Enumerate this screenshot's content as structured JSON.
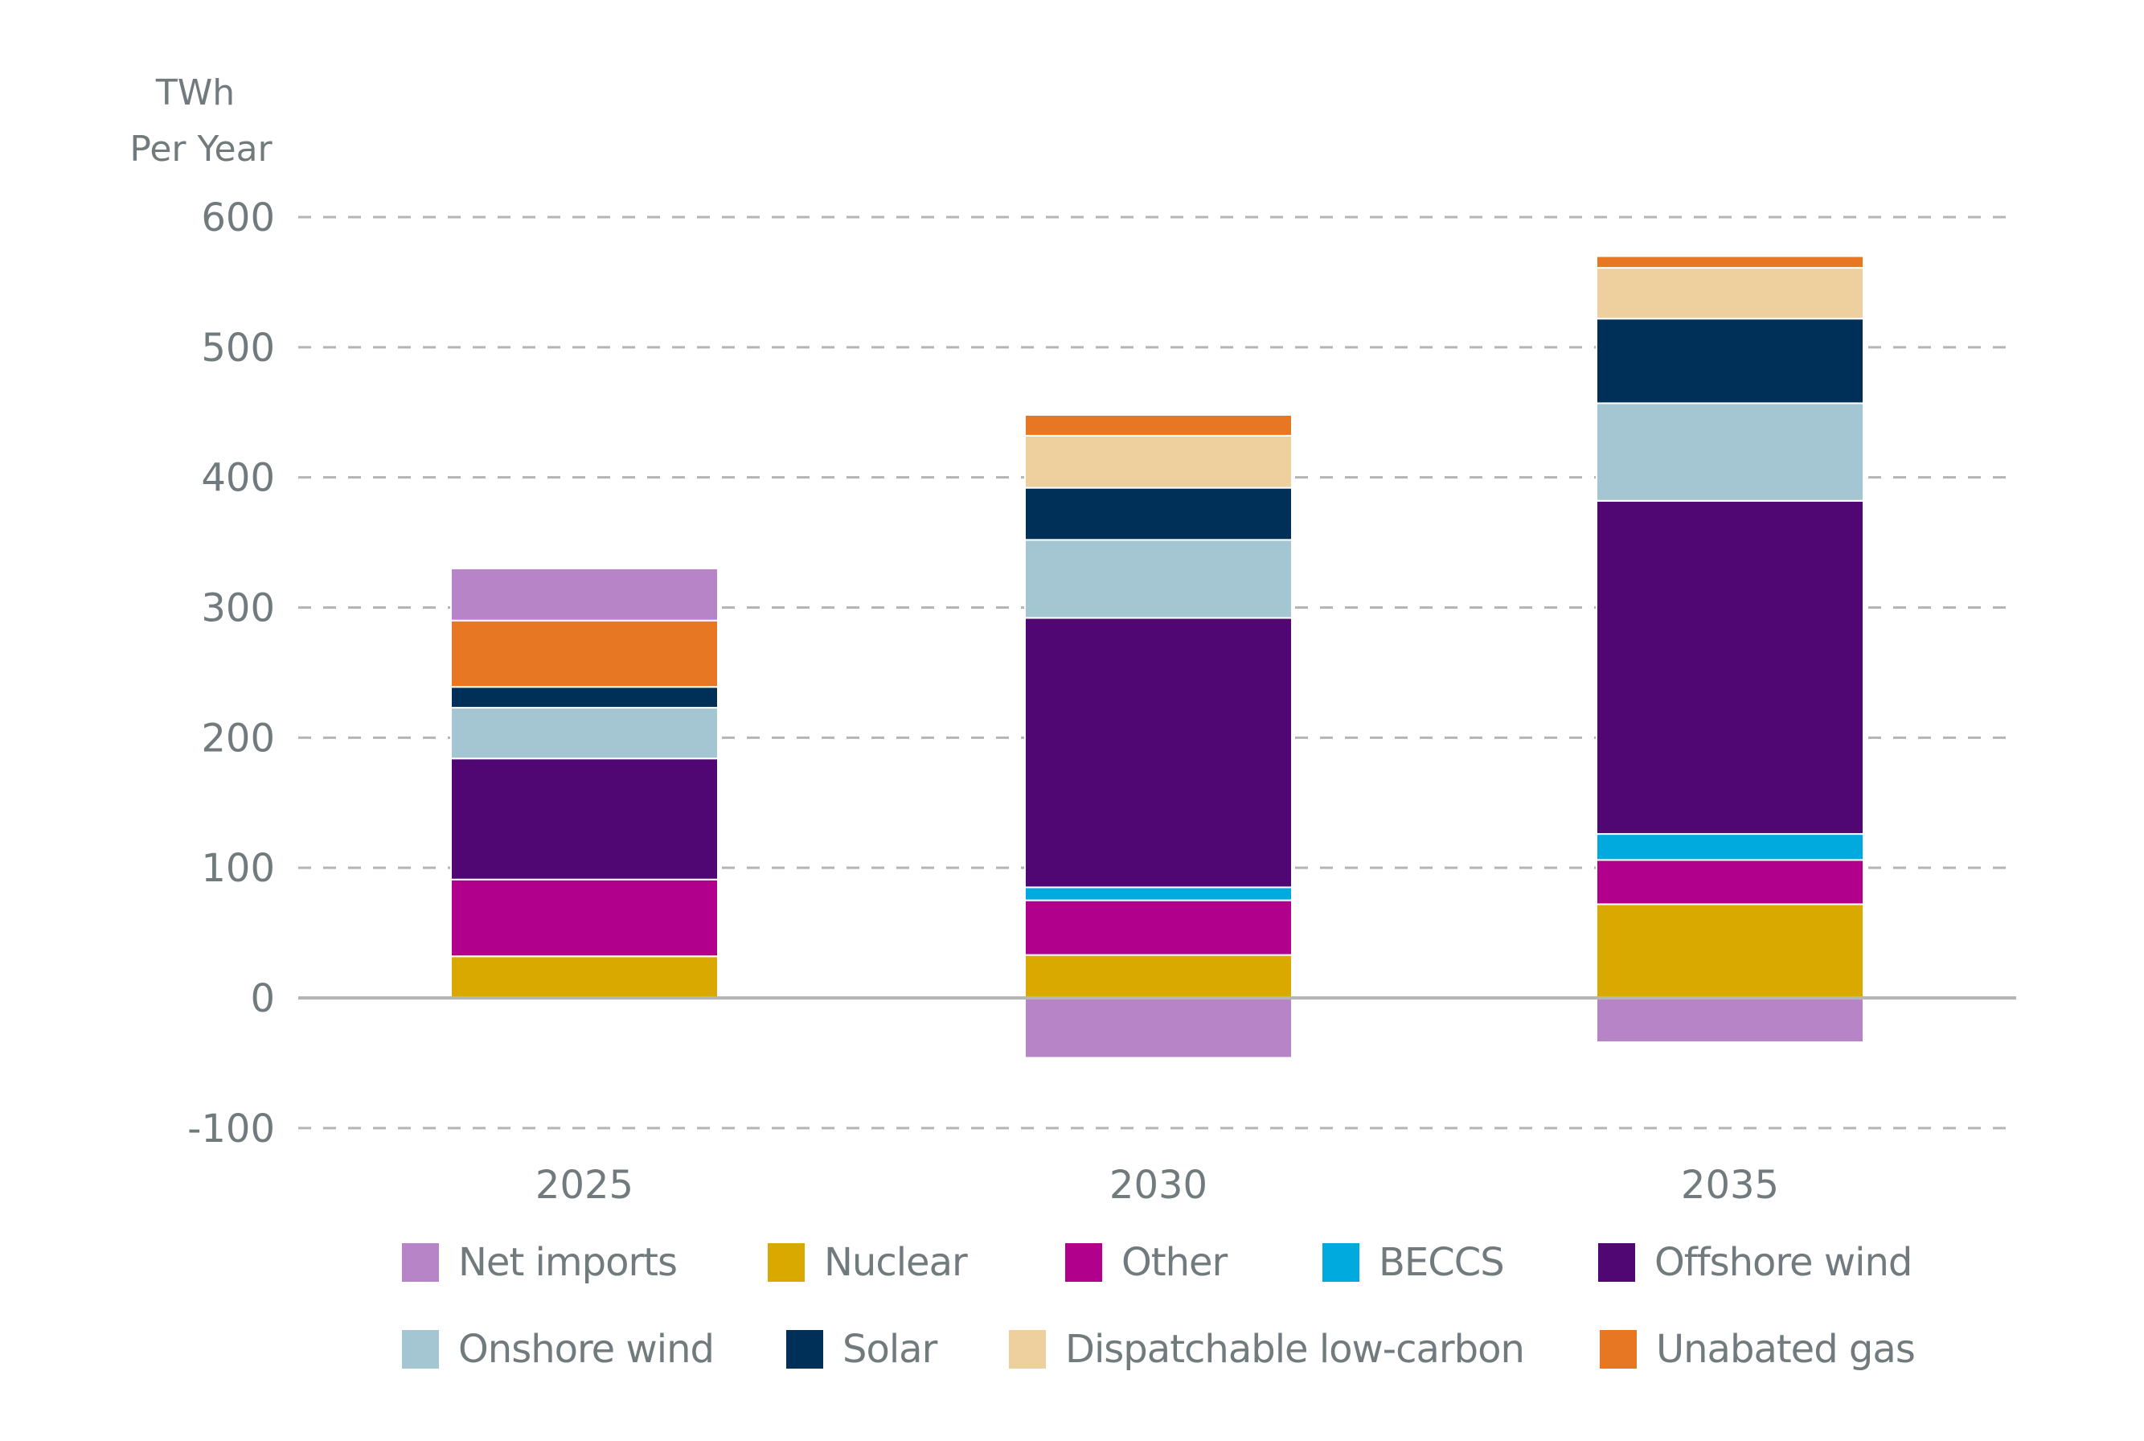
{
  "chart_data": {
    "type": "bar",
    "stacked": true,
    "title": "",
    "ylabel": "TWh Per Year",
    "ylabel_lines": [
      "TWh",
      "Per Year"
    ],
    "xlabel": "",
    "ylim": [
      -100,
      600
    ],
    "yticks": [
      600,
      500,
      400,
      300,
      200,
      100,
      0,
      -100
    ],
    "grid": true,
    "legend_position": "bottom",
    "categories": [
      "2025",
      "2030",
      "2035"
    ],
    "series": [
      {
        "name": "Net imports",
        "color": "#b784c8",
        "values": [
          40,
          -46,
          -34
        ]
      },
      {
        "name": "Nuclear",
        "color": "#d9a900",
        "values": [
          32,
          33,
          72
        ]
      },
      {
        "name": "Other",
        "color": "#b0008c",
        "values": [
          59,
          42,
          34
        ]
      },
      {
        "name": "BECCS",
        "color": "#00a9de",
        "values": [
          0,
          10,
          20
        ]
      },
      {
        "name": "Offshore wind",
        "color": "#500773",
        "values": [
          93,
          207,
          256
        ]
      },
      {
        "name": "Onshore wind",
        "color": "#a3c6d2",
        "values": [
          39,
          60,
          75
        ]
      },
      {
        "name": "Solar",
        "color": "#002f57",
        "values": [
          16,
          40,
          65
        ]
      },
      {
        "name": "Dispatchable low-carbon",
        "color": "#eed09f",
        "values": [
          0,
          40,
          39
        ]
      },
      {
        "name": "Unabated gas",
        "color": "#e77722",
        "values": [
          51,
          16,
          9
        ]
      }
    ],
    "stack_order": [
      "Nuclear",
      "Other",
      "BECCS",
      "Offshore wind",
      "Onshore wind",
      "Solar",
      "Dispatchable low-carbon",
      "Unabated gas",
      "Net imports"
    ]
  }
}
